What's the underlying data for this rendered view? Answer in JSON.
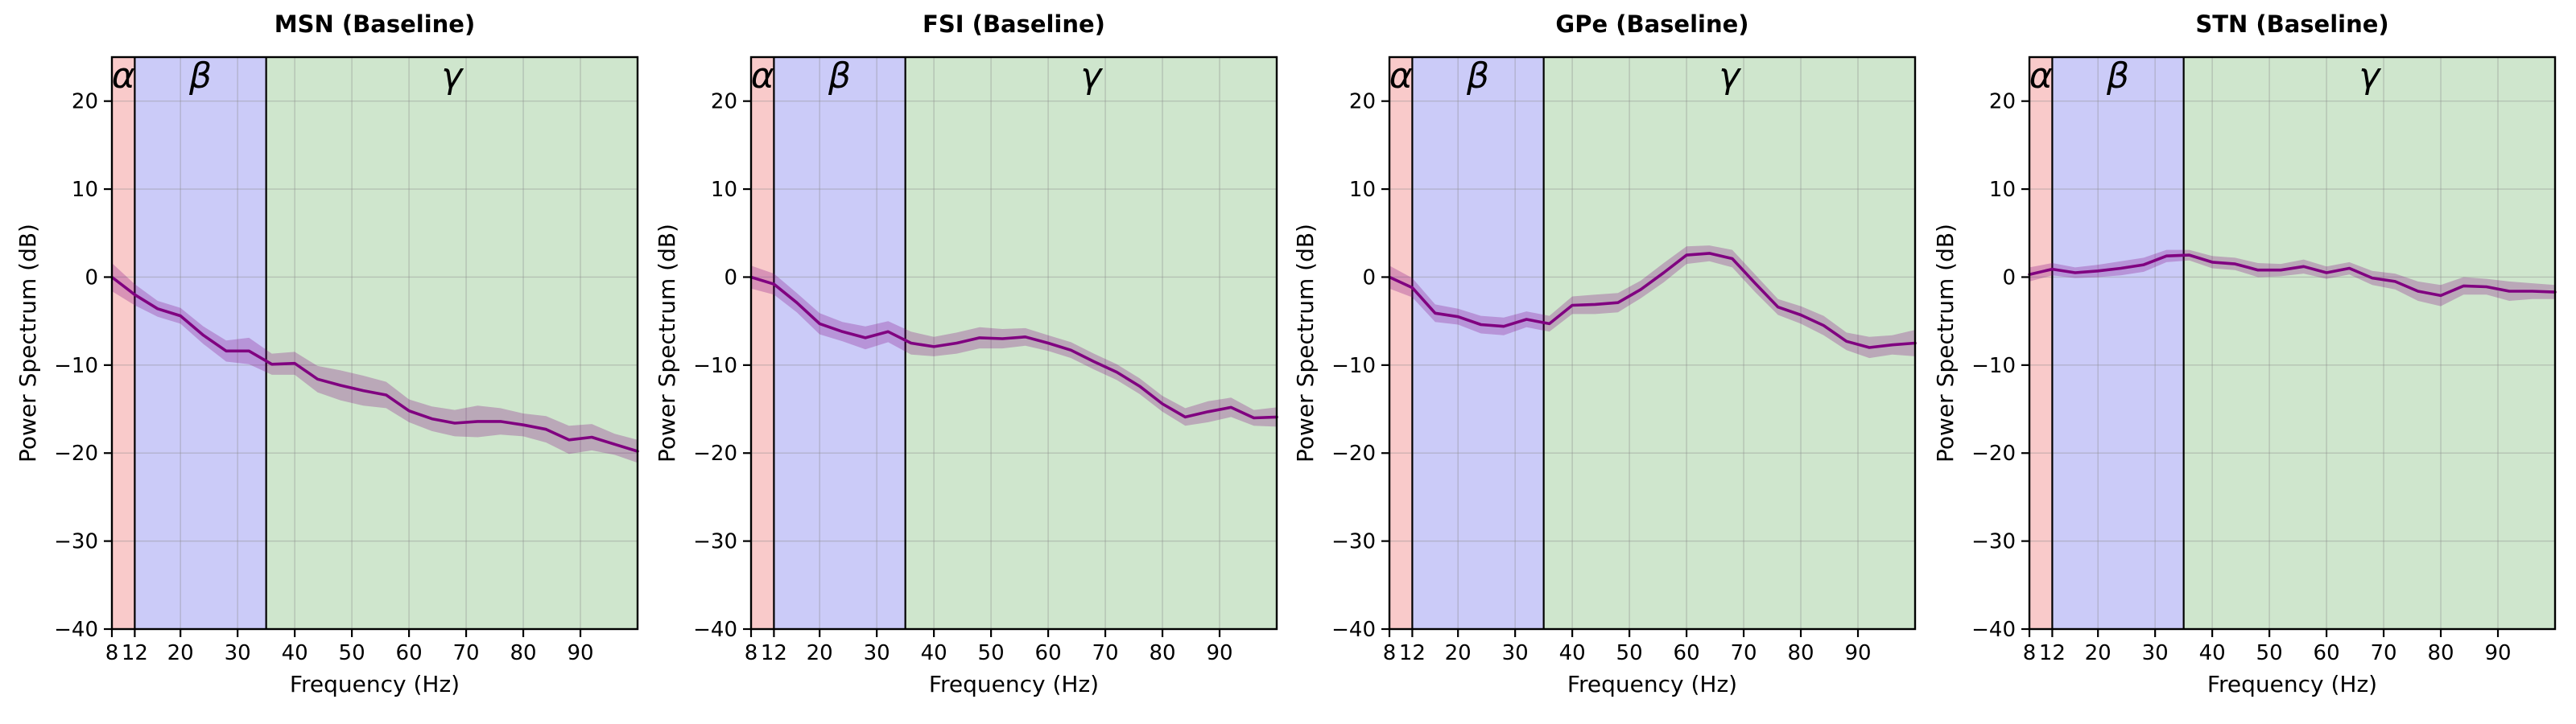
{
  "figure": {
    "x_tick_labels": [
      "8",
      "12",
      "20",
      "30",
      "40",
      "50",
      "60",
      "70",
      "80",
      "90"
    ],
    "x_tick_values": [
      8,
      12,
      20,
      30,
      40,
      50,
      60,
      70,
      80,
      90
    ],
    "y_tick_labels": [
      "20",
      "10",
      "0",
      "−10",
      "−20",
      "−30",
      "−40"
    ],
    "y_tick_values": [
      20,
      10,
      0,
      -10,
      -20,
      -30,
      -40
    ],
    "line_color": "#800080",
    "ci_color": "#800080",
    "ci_opacity": 0.27,
    "grid_color": "#8a8a8a",
    "band_border_color": "#000000"
  },
  "chart_data": {
    "type": "line",
    "xlabel": "Frequency (Hz)",
    "ylabel": "Power Spectrum (dB)",
    "xlim": [
      8,
      100
    ],
    "ylim": [
      -40,
      25
    ],
    "x": [
      8,
      12,
      16,
      20,
      24,
      28,
      32,
      36,
      40,
      44,
      48,
      52,
      56,
      60,
      64,
      68,
      72,
      76,
      80,
      84,
      88,
      92,
      96,
      100
    ],
    "bands": [
      {
        "name": "alpha",
        "label": "α",
        "range": [
          8,
          12
        ],
        "color": "#f9caca",
        "label_x": 10
      },
      {
        "name": "beta",
        "label": "β",
        "range": [
          12,
          35
        ],
        "color": "#cbcbf8",
        "label_x": 23.5
      },
      {
        "name": "gamma",
        "label": "γ",
        "range": [
          35,
          100
        ],
        "color": "#cfe6cd",
        "label_x": 67.5
      }
    ],
    "panels": [
      {
        "id": "msn",
        "title": "MSN (Baseline)",
        "mean": [
          0,
          -2.0,
          -3.6,
          -4.4,
          -6.6,
          -8.4,
          -8.4,
          -9.9,
          -9.8,
          -11.6,
          -12.3,
          -12.9,
          -13.4,
          -15.2,
          -16.1,
          -16.6,
          -16.4,
          -16.4,
          -16.8,
          -17.3,
          -18.5,
          -18.2,
          -19.0,
          -19.8
        ],
        "ci": [
          1.6,
          1.2,
          0.9,
          0.9,
          1.0,
          1.2,
          1.5,
          1.2,
          1.3,
          1.5,
          1.7,
          1.7,
          1.5,
          1.3,
          1.4,
          1.5,
          1.8,
          1.5,
          1.3,
          1.5,
          1.6,
          1.5,
          1.2,
          1.3
        ]
      },
      {
        "id": "fsi",
        "title": "FSI (Baseline)",
        "mean": [
          0,
          -0.8,
          -2.9,
          -5.3,
          -6.2,
          -6.9,
          -6.2,
          -7.5,
          -7.9,
          -7.5,
          -6.9,
          -7.0,
          -6.8,
          -7.5,
          -8.3,
          -9.6,
          -10.8,
          -12.4,
          -14.4,
          -15.9,
          -15.3,
          -14.8,
          -16.0,
          -15.9
        ],
        "ci": [
          1.3,
          1.2,
          1.1,
          1.2,
          1.1,
          1.3,
          1.2,
          1.3,
          1.1,
          1.2,
          1.2,
          1.1,
          1.0,
          0.9,
          0.9,
          0.9,
          0.9,
          0.9,
          0.9,
          1.0,
          1.2,
          1.1,
          0.9,
          1.1
        ]
      },
      {
        "id": "gpe",
        "title": "GPe (Baseline)",
        "mean": [
          0,
          -1.2,
          -4.1,
          -4.5,
          -5.4,
          -5.6,
          -4.8,
          -5.3,
          -3.2,
          -3.1,
          -2.9,
          -1.4,
          0.5,
          2.5,
          2.7,
          2.1,
          -0.7,
          -3.4,
          -4.3,
          -5.5,
          -7.3,
          -8.0,
          -7.7,
          -7.5
        ],
        "ci": [
          1.3,
          1.1,
          1.0,
          0.9,
          1.0,
          1.0,
          0.9,
          0.9,
          1.0,
          1.1,
          1.1,
          1.0,
          1.1,
          1.0,
          0.9,
          1.0,
          1.0,
          0.9,
          1.0,
          1.1,
          1.0,
          1.2,
          1.1,
          1.5
        ]
      },
      {
        "id": "stn",
        "title": "STN (Baseline)",
        "mean": [
          0.3,
          0.9,
          0.5,
          0.7,
          1.0,
          1.4,
          2.4,
          2.5,
          1.7,
          1.5,
          0.8,
          0.8,
          1.2,
          0.5,
          1.0,
          -0.1,
          -0.5,
          -1.6,
          -2.1,
          -1.0,
          -1.1,
          -1.6,
          -1.6,
          -1.7
        ],
        "ci": [
          0.8,
          0.7,
          0.6,
          0.7,
          0.8,
          0.8,
          0.7,
          0.6,
          0.7,
          0.7,
          0.8,
          0.7,
          0.8,
          0.7,
          0.7,
          0.8,
          0.9,
          1.1,
          1.2,
          1.0,
          0.9,
          1.1,
          0.9,
          0.8
        ]
      }
    ]
  }
}
